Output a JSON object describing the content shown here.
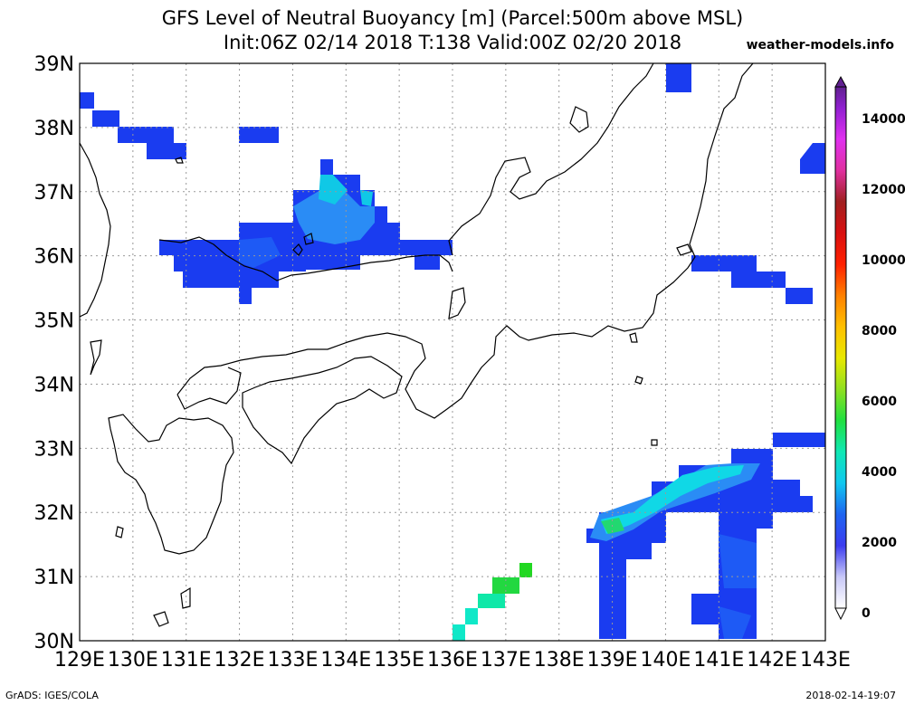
{
  "title": {
    "line1": "GFS Level of Neutral Buoyancy [m] (Parcel:500m above MSL)",
    "line2": "Init:06Z 02/14 2018 T:138 Valid:00Z 02/20 2018",
    "site": "weather-models.info"
  },
  "footer": {
    "left": "GrADS: IGES/COLA",
    "right": "2018-02-14-19:07"
  },
  "map": {
    "lon_range": [
      129,
      143
    ],
    "lat_range": [
      30,
      39
    ],
    "lon_ticks": [
      "129E",
      "130E",
      "131E",
      "132E",
      "133E",
      "134E",
      "135E",
      "136E",
      "137E",
      "138E",
      "139E",
      "140E",
      "141E",
      "142E",
      "143E"
    ],
    "lat_ticks": [
      "30N",
      "31N",
      "32N",
      "33N",
      "34N",
      "35N",
      "36N",
      "37N",
      "38N",
      "39N"
    ]
  },
  "colorbar": {
    "labels": [
      "0",
      "2000",
      "4000",
      "6000",
      "8000",
      "10000",
      "12000",
      "14000"
    ]
  },
  "colors": {
    "blue": "#1a3cf0",
    "mid_blue": "#1e5af5",
    "light_blue": "#2a8cf5",
    "cyan": "#10d8e6",
    "teal": "#10e8a8",
    "green": "#22d822",
    "coast": "#000000"
  }
}
